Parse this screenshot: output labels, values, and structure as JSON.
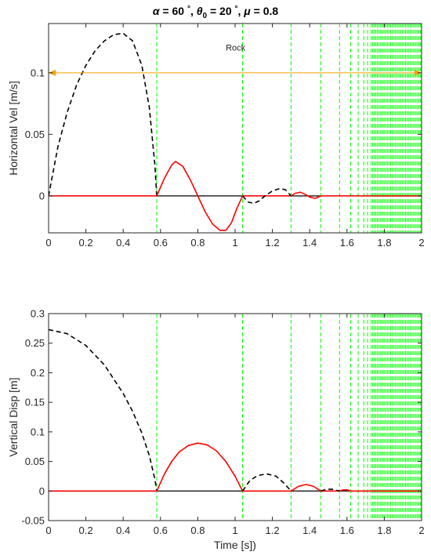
{
  "title": {
    "parts": [
      {
        "text": "α",
        "italic": true
      },
      {
        "text": " =  60 ",
        "italic": false
      },
      {
        "text": "°",
        "italic": false,
        "sup": true
      },
      {
        "text": ", ",
        "italic": false
      },
      {
        "text": "θ",
        "italic": true
      },
      {
        "text": "0",
        "italic": false,
        "sub": true
      },
      {
        "text": " =  20 ",
        "italic": false
      },
      {
        "text": "°",
        "italic": false,
        "sup": true
      },
      {
        "text": ", ",
        "italic": false
      },
      {
        "text": "μ",
        "italic": true
      },
      {
        "text": " = 0.8",
        "italic": false
      }
    ]
  },
  "colors": {
    "black_dashed": "#000000",
    "red": "#ff0000",
    "green_dashed": "#00ff00",
    "orange": "#f5a000",
    "zero_line": "#000000"
  },
  "chart_data": [
    {
      "type": "line",
      "ylabel": "Horizontal Vel [m/s]",
      "xlabel": "",
      "xlim": [
        0,
        2
      ],
      "ylim": [
        -0.03,
        0.14
      ],
      "xticks": [
        "0",
        "0.2",
        "0.4",
        "0.6",
        "0.8",
        "1",
        "1.2",
        "1.4",
        "1.6",
        "1.8",
        "2"
      ],
      "yticks": [
        {
          "value": 0,
          "label": "0"
        },
        {
          "value": 0.05,
          "label": "0.05"
        },
        {
          "value": 0.1,
          "label": "0.1"
        }
      ],
      "annotation": {
        "text": "Rock",
        "x": 0.95,
        "y": 0.118
      },
      "arrow_line": {
        "y": 0.1,
        "x_start": 0,
        "x_end": 2
      },
      "impact_times": [
        0.58,
        1.04,
        1.3,
        1.46,
        1.56,
        1.62,
        1.66,
        1.69,
        1.71,
        1.73
      ],
      "dense_from": 1.73,
      "series": [
        {
          "style": "black-dashed",
          "points": [
            [
              0,
              0
            ],
            [
              0.05,
              0.04
            ],
            [
              0.1,
              0.068
            ],
            [
              0.15,
              0.09
            ],
            [
              0.2,
              0.106
            ],
            [
              0.25,
              0.118
            ],
            [
              0.3,
              0.126
            ],
            [
              0.35,
              0.131
            ],
            [
              0.4,
              0.132
            ],
            [
              0.45,
              0.126
            ],
            [
              0.5,
              0.106
            ],
            [
              0.54,
              0.072
            ],
            [
              0.57,
              0.025
            ],
            [
              0.58,
              0
            ]
          ]
        },
        {
          "style": "red",
          "points": [
            [
              0,
              0
            ],
            [
              0.58,
              0
            ],
            [
              0.62,
              0.014
            ],
            [
              0.66,
              0.025
            ],
            [
              0.68,
              0.028
            ],
            [
              0.72,
              0.024
            ],
            [
              0.76,
              0.013
            ],
            [
              0.8,
              0
            ],
            [
              0.84,
              -0.013
            ],
            [
              0.88,
              -0.023
            ],
            [
              0.92,
              -0.028
            ],
            [
              0.95,
              -0.028
            ],
            [
              0.98,
              -0.022
            ],
            [
              1.01,
              -0.01
            ],
            [
              1.04,
              0
            ],
            [
              1.3,
              0
            ],
            [
              1.32,
              0.002
            ],
            [
              1.35,
              0.003
            ],
            [
              1.38,
              0.001
            ],
            [
              1.4,
              -0.001
            ],
            [
              1.43,
              -0.002
            ],
            [
              1.46,
              0
            ],
            [
              2,
              0
            ]
          ]
        },
        {
          "style": "black-dashed",
          "points": [
            [
              1.04,
              0
            ],
            [
              1.07,
              -0.005
            ],
            [
              1.1,
              -0.006
            ],
            [
              1.13,
              -0.004
            ],
            [
              1.16,
              0
            ],
            [
              1.2,
              0.004
            ],
            [
              1.24,
              0.006
            ],
            [
              1.27,
              0.005
            ],
            [
              1.3,
              0
            ]
          ]
        }
      ]
    },
    {
      "type": "line",
      "ylabel": "Vertical Disp [m]",
      "xlabel": "Time [s])",
      "xlim": [
        0,
        2
      ],
      "ylim": [
        -0.05,
        0.3
      ],
      "xticks": [
        "0",
        "0.2",
        "0.4",
        "0.6",
        "0.8",
        "1",
        "1.2",
        "1.4",
        "1.6",
        "1.8",
        "2"
      ],
      "yticks": [
        {
          "value": -0.05,
          "label": "-0.05"
        },
        {
          "value": 0,
          "label": "0"
        },
        {
          "value": 0.05,
          "label": "0.05"
        },
        {
          "value": 0.1,
          "label": "0.1"
        },
        {
          "value": 0.15,
          "label": "0.15"
        },
        {
          "value": 0.2,
          "label": "0.2"
        },
        {
          "value": 0.25,
          "label": "0.25"
        },
        {
          "value": 0.3,
          "label": "0.3"
        }
      ],
      "impact_times": [
        0.58,
        1.04,
        1.3,
        1.46,
        1.56,
        1.62,
        1.66,
        1.69,
        1.71,
        1.73
      ],
      "dense_from": 1.73,
      "series": [
        {
          "style": "black-dashed",
          "points": [
            [
              0,
              0.273
            ],
            [
              0.1,
              0.266
            ],
            [
              0.2,
              0.246
            ],
            [
              0.3,
              0.213
            ],
            [
              0.4,
              0.165
            ],
            [
              0.45,
              0.135
            ],
            [
              0.5,
              0.098
            ],
            [
              0.54,
              0.06
            ],
            [
              0.57,
              0.02
            ],
            [
              0.58,
              0
            ]
          ]
        },
        {
          "style": "red",
          "points": [
            [
              0,
              0
            ],
            [
              0.58,
              0
            ],
            [
              0.62,
              0.028
            ],
            [
              0.66,
              0.05
            ],
            [
              0.7,
              0.066
            ],
            [
              0.75,
              0.077
            ],
            [
              0.8,
              0.081
            ],
            [
              0.85,
              0.078
            ],
            [
              0.9,
              0.068
            ],
            [
              0.95,
              0.05
            ],
            [
              1.0,
              0.025
            ],
            [
              1.04,
              0
            ],
            [
              1.3,
              0
            ],
            [
              1.34,
              0.008
            ],
            [
              1.38,
              0.011
            ],
            [
              1.42,
              0.008
            ],
            [
              1.46,
              0
            ],
            [
              1.56,
              0
            ],
            [
              1.58,
              0.002
            ],
            [
              1.6,
              0.002
            ],
            [
              1.62,
              0
            ],
            [
              2,
              0
            ]
          ]
        },
        {
          "style": "black-dashed",
          "points": [
            [
              1.04,
              0
            ],
            [
              1.08,
              0.018
            ],
            [
              1.12,
              0.026
            ],
            [
              1.17,
              0.029
            ],
            [
              1.22,
              0.025
            ],
            [
              1.26,
              0.014
            ],
            [
              1.3,
              0
            ]
          ]
        },
        {
          "style": "black-dashed",
          "points": [
            [
              1.46,
              0
            ],
            [
              1.49,
              0.003
            ],
            [
              1.52,
              0.003
            ],
            [
              1.56,
              0
            ]
          ]
        }
      ]
    }
  ]
}
